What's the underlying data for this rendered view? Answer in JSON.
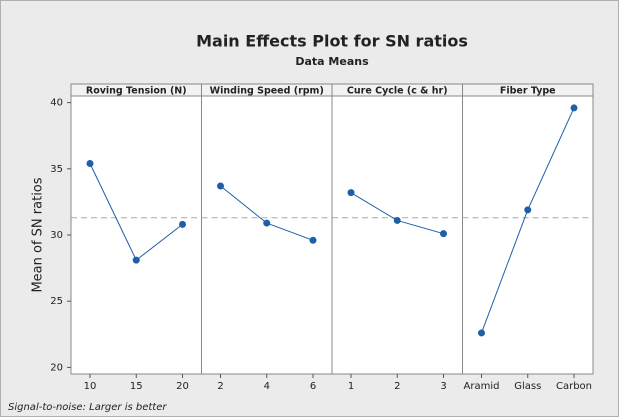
{
  "title": "Main Effects Plot for SN ratios",
  "subtitle": "Data Means",
  "y_label": "Mean of SN ratios",
  "footnote": "Signal-to-noise: Larger is better",
  "reference_line": 31.3,
  "chart_data": [
    {
      "type": "line",
      "title": "Roving Tension (N)",
      "categories": [
        "10",
        "15",
        "20"
      ],
      "values": [
        35.4,
        28.1,
        30.8
      ],
      "color": "#1f5fa8",
      "ylim": [
        19.5,
        40.5
      ],
      "yticks": [
        20,
        25,
        30,
        35,
        40
      ]
    },
    {
      "type": "line",
      "title": "Winding Speed (rpm)",
      "categories": [
        "2",
        "4",
        "6"
      ],
      "values": [
        33.7,
        30.9,
        29.6
      ],
      "color": "#1f5fa8",
      "ylim": [
        19.5,
        40.5
      ]
    },
    {
      "type": "line",
      "title": "Cure Cycle (c & hr)",
      "categories": [
        "1",
        "2",
        "3"
      ],
      "values": [
        33.2,
        31.1,
        30.1
      ],
      "color": "#1f5fa8",
      "ylim": [
        19.5,
        40.5
      ]
    },
    {
      "type": "line",
      "title": "Fiber Type",
      "categories": [
        "Aramid",
        "Glass",
        "Carbon"
      ],
      "values": [
        22.6,
        31.9,
        39.6
      ],
      "color": "#1f5fa8",
      "ylim": [
        19.5,
        40.5
      ]
    }
  ]
}
